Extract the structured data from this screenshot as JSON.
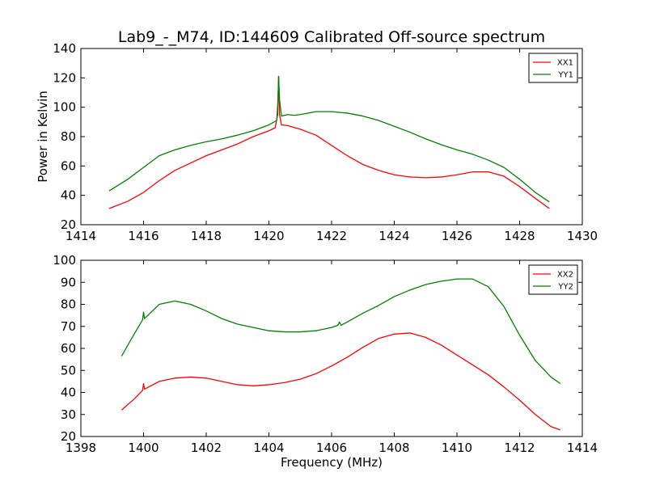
{
  "chart_data": {
    "type": "line",
    "title": "Lab9_-_M74, ID:144609 Calibrated Off-source spectrum",
    "colors": {
      "red": "#ff0000",
      "green": "#008000"
    },
    "panels": [
      {
        "ylabel": "Power in Kelvin",
        "xlabel": "",
        "xlim": [
          1414,
          1430
        ],
        "ylim": [
          20,
          140
        ],
        "xticks": [
          1414,
          1416,
          1418,
          1420,
          1422,
          1424,
          1426,
          1428,
          1430
        ],
        "yticks": [
          20,
          40,
          60,
          80,
          100,
          120,
          140
        ],
        "legend": "top-right",
        "series": [
          {
            "name": "XX1",
            "color": "#ff0000",
            "points": [
              [
                1414.9,
                31
              ],
              [
                1415.5,
                36
              ],
              [
                1416,
                42
              ],
              [
                1416.5,
                50
              ],
              [
                1417,
                57
              ],
              [
                1417.5,
                62
              ],
              [
                1418,
                67
              ],
              [
                1418.5,
                71
              ],
              [
                1419,
                75
              ],
              [
                1419.5,
                80
              ],
              [
                1420,
                84
              ],
              [
                1420.2,
                86
              ],
              [
                1420.28,
                95
              ],
              [
                1420.31,
                121
              ],
              [
                1420.34,
                95
              ],
              [
                1420.4,
                88
              ],
              [
                1420.6,
                87.5
              ],
              [
                1421,
                85
              ],
              [
                1421.5,
                81
              ],
              [
                1422,
                74
              ],
              [
                1422.5,
                67
              ],
              [
                1423,
                61
              ],
              [
                1423.5,
                57
              ],
              [
                1424,
                54
              ],
              [
                1424.5,
                52.5
              ],
              [
                1425,
                52
              ],
              [
                1425.5,
                52.5
              ],
              [
                1426,
                54
              ],
              [
                1426.5,
                56
              ],
              [
                1427,
                56
              ],
              [
                1427.5,
                53
              ],
              [
                1428,
                46
              ],
              [
                1428.5,
                38
              ],
              [
                1428.95,
                31
              ]
            ]
          },
          {
            "name": "YY1",
            "color": "#008000",
            "points": [
              [
                1414.9,
                43
              ],
              [
                1415.5,
                51
              ],
              [
                1416,
                59
              ],
              [
                1416.5,
                67
              ],
              [
                1417,
                71
              ],
              [
                1417.5,
                74
              ],
              [
                1418,
                76.5
              ],
              [
                1418.5,
                78.5
              ],
              [
                1419,
                81
              ],
              [
                1419.5,
                84
              ],
              [
                1420,
                88
              ],
              [
                1420.25,
                91
              ],
              [
                1420.29,
                105
              ],
              [
                1420.31,
                121
              ],
              [
                1420.34,
                105
              ],
              [
                1420.4,
                94
              ],
              [
                1420.6,
                95
              ],
              [
                1420.8,
                94.5
              ],
              [
                1421,
                95
              ],
              [
                1421.5,
                97
              ],
              [
                1422,
                97
              ],
              [
                1422.5,
                96
              ],
              [
                1423,
                94
              ],
              [
                1423.5,
                91
              ],
              [
                1424,
                87
              ],
              [
                1424.5,
                83
              ],
              [
                1425,
                78.5
              ],
              [
                1425.5,
                74.5
              ],
              [
                1426,
                71
              ],
              [
                1426.5,
                68
              ],
              [
                1427,
                64
              ],
              [
                1427.5,
                59
              ],
              [
                1428,
                51
              ],
              [
                1428.5,
                42
              ],
              [
                1428.95,
                35.5
              ]
            ]
          }
        ]
      },
      {
        "ylabel": "",
        "xlabel": "Frequency (MHz)",
        "xlim": [
          1398,
          1414
        ],
        "ylim": [
          20,
          100
        ],
        "xticks": [
          1398,
          1400,
          1402,
          1404,
          1406,
          1408,
          1410,
          1412,
          1414
        ],
        "yticks": [
          20,
          30,
          40,
          50,
          60,
          70,
          80,
          90,
          100
        ],
        "legend": "top-right",
        "series": [
          {
            "name": "XX2",
            "color": "#ff0000",
            "points": [
              [
                1399.3,
                32
              ],
              [
                1399.7,
                37
              ],
              [
                1399.97,
                41
              ],
              [
                1400,
                44
              ],
              [
                1400.03,
                41.5
              ],
              [
                1400.5,
                45
              ],
              [
                1401,
                46.5
              ],
              [
                1401.5,
                47
              ],
              [
                1402,
                46.5
              ],
              [
                1402.5,
                45
              ],
              [
                1403,
                43.5
              ],
              [
                1403.5,
                43
              ],
              [
                1404,
                43.5
              ],
              [
                1404.5,
                44.5
              ],
              [
                1405,
                46
              ],
              [
                1405.5,
                48.5
              ],
              [
                1406,
                52
              ],
              [
                1406.5,
                56
              ],
              [
                1407,
                60.5
              ],
              [
                1407.5,
                64.5
              ],
              [
                1408,
                66.5
              ],
              [
                1408.5,
                67
              ],
              [
                1409,
                65
              ],
              [
                1409.5,
                61.5
              ],
              [
                1410,
                57
              ],
              [
                1410.5,
                52.5
              ],
              [
                1411,
                48
              ],
              [
                1411.5,
                42.5
              ],
              [
                1412,
                36.5
              ],
              [
                1412.5,
                30
              ],
              [
                1413,
                24.5
              ],
              [
                1413.3,
                23
              ]
            ]
          },
          {
            "name": "YY2",
            "color": "#008000",
            "points": [
              [
                1399.3,
                56.5
              ],
              [
                1399.6,
                64
              ],
              [
                1399.97,
                73
              ],
              [
                1400,
                76.5
              ],
              [
                1400.03,
                73.5
              ],
              [
                1400.5,
                80
              ],
              [
                1401,
                81.5
              ],
              [
                1401.5,
                80
              ],
              [
                1402,
                77
              ],
              [
                1402.5,
                73.5
              ],
              [
                1403,
                71
              ],
              [
                1403.5,
                69.5
              ],
              [
                1404,
                68
              ],
              [
                1404.5,
                67.5
              ],
              [
                1405,
                67.5
              ],
              [
                1405.5,
                68
              ],
              [
                1406,
                69.5
              ],
              [
                1406.2,
                70.5
              ],
              [
                1406.25,
                72
              ],
              [
                1406.3,
                70.5
              ],
              [
                1406.5,
                72
              ],
              [
                1407,
                76
              ],
              [
                1407.5,
                79.5
              ],
              [
                1408,
                83.5
              ],
              [
                1408.5,
                86.5
              ],
              [
                1409,
                89
              ],
              [
                1409.5,
                90.5
              ],
              [
                1410,
                91.5
              ],
              [
                1410.5,
                91.5
              ],
              [
                1411,
                88
              ],
              [
                1411.5,
                79
              ],
              [
                1412,
                66
              ],
              [
                1412.5,
                54.5
              ],
              [
                1413,
                47
              ],
              [
                1413.3,
                44
              ]
            ]
          }
        ]
      }
    ]
  }
}
